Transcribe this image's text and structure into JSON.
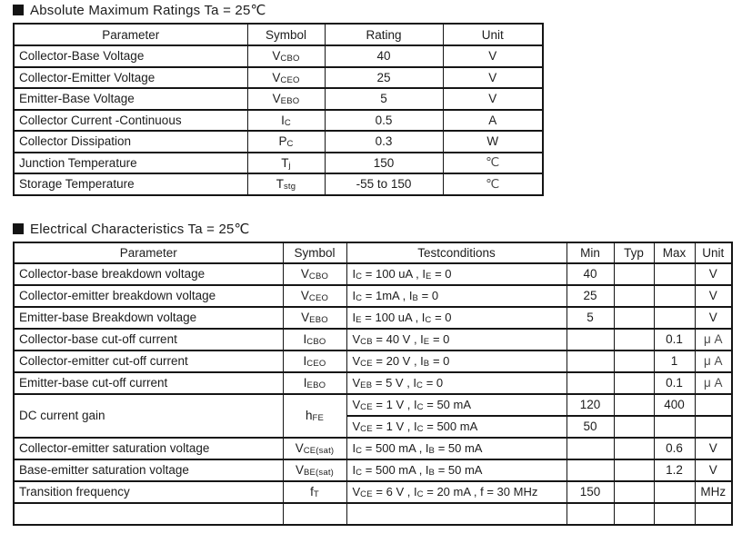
{
  "section1": {
    "title": "Absolute Maximum Ratings Ta = 25℃",
    "table": {
      "headers": {
        "parameter": "Parameter",
        "symbol": "Symbol",
        "rating": "Rating",
        "unit": "Unit"
      },
      "rows": [
        {
          "parameter": "Collector-Base Voltage",
          "symbol": "V_{CBO}",
          "rating": "40",
          "unit": "V"
        },
        {
          "parameter": "Collector-Emitter Voltage",
          "symbol": "V_{CEO}",
          "rating": "25",
          "unit": "V"
        },
        {
          "parameter": "Emitter-Base Voltage",
          "symbol": "V_{EBO}",
          "rating": "5",
          "unit": "V"
        },
        {
          "parameter": "Collector Current -Continuous",
          "symbol": "I_{C}",
          "rating": "0.5",
          "unit": "A"
        },
        {
          "parameter": "Collector Dissipation",
          "symbol": "P_{C}",
          "rating": "0.3",
          "unit": "W"
        },
        {
          "parameter": "Junction Temperature",
          "symbol": "T_{j}",
          "rating": "150",
          "unit": "℃"
        },
        {
          "parameter": "Storage Temperature",
          "symbol": "T_{stg}",
          "rating": "-55 to 150",
          "unit": "℃"
        }
      ]
    }
  },
  "section2": {
    "title": "Electrical Characteristics Ta = 25℃",
    "table": {
      "headers": {
        "parameter": "Parameter",
        "symbol": "Symbol",
        "testcond": "Testconditions",
        "min": "Min",
        "typ": "Typ",
        "max": "Max",
        "unit": "Unit"
      },
      "rows": [
        {
          "parameter": "Collector-base breakdown voltage",
          "symbol": "V_{CBO}",
          "testcond": "I_{C} = 100 uA , I_{E} = 0",
          "min": "40",
          "typ": "",
          "max": "",
          "unit": "V"
        },
        {
          "parameter": "Collector-emitter breakdown voltage",
          "symbol": "V_{CEO}",
          "testcond": "I_{C} = 1mA , I_{B} = 0",
          "min": "25",
          "typ": "",
          "max": "",
          "unit": "V"
        },
        {
          "parameter": "Emitter-base Breakdown voltage",
          "symbol": "V_{EBO}",
          "testcond": "I_{E} = 100 uA , I_{C} = 0",
          "min": "5",
          "typ": "",
          "max": "",
          "unit": "V"
        },
        {
          "parameter": "Collector-base cut-off current",
          "symbol": "I_{CBO}",
          "testcond": "V_{CB} = 40 V , I_{E} = 0",
          "min": "",
          "typ": "",
          "max": "0.1",
          "unit": "μ A"
        },
        {
          "parameter": "Collector-emitter cut-off current",
          "symbol": "I_{CEO}",
          "testcond": "V_{CE} = 20 V , I_{B} = 0",
          "min": "",
          "typ": "",
          "max": "1",
          "unit": "μ A"
        },
        {
          "parameter": "Emitter-base cut-off current",
          "symbol": "I_{EBO}",
          "testcond": "V_{EB} = 5 V , I_{C} = 0",
          "min": "",
          "typ": "",
          "max": "0.1",
          "unit": "μ A"
        },
        {
          "parameter": "DC current gain",
          "symbol": "h_{FE}",
          "testcond": "V_{CE} = 1 V , I_{C} = 50 mA",
          "min": "120",
          "typ": "",
          "max": "400",
          "unit": ""
        },
        {
          "parameter": "",
          "symbol": "",
          "testcond": "V_{CE} = 1 V , I_{C} = 500 mA",
          "min": "50",
          "typ": "",
          "max": "",
          "unit": ""
        },
        {
          "parameter": "Collector-emitter saturation voltage",
          "symbol": "V_{CE(sat)}",
          "testcond": "I_{C} = 500 mA , I_{B} = 50 mA",
          "min": "",
          "typ": "",
          "max": "0.6",
          "unit": "V"
        },
        {
          "parameter": "Base-emitter saturation voltage",
          "symbol": "V_{BE(sat)}",
          "testcond": "I_{C} = 500 mA , I_{B} = 50 mA",
          "min": "",
          "typ": "",
          "max": "1.2",
          "unit": "V"
        },
        {
          "parameter": "Transition frequency",
          "symbol": "f_{T}",
          "testcond": "V_{CE} = 6 V , I_{C} = 20 mA , f = 30 MHz",
          "min": "150",
          "typ": "",
          "max": "",
          "unit": "MHz"
        }
      ]
    }
  }
}
